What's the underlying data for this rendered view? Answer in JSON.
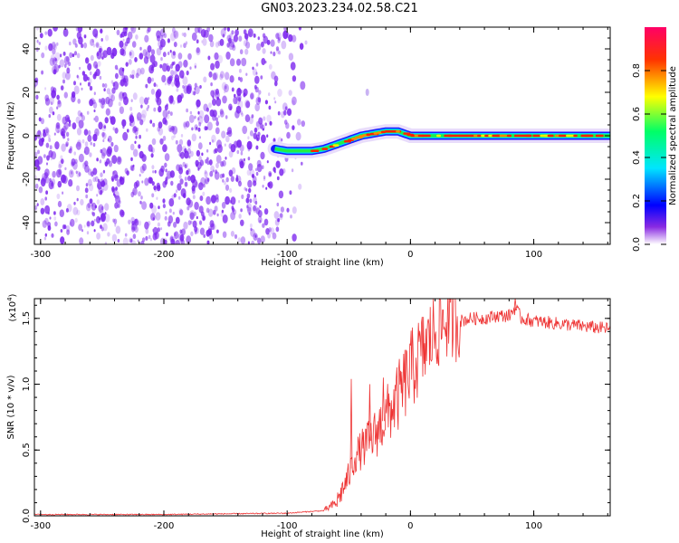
{
  "title": "GN03.2023.234.02.58.C21",
  "colors": {
    "snr_line": "#ee3333",
    "frame": "#000000",
    "noise": "#7a22ee",
    "colormap_stops": [
      "#8a2be2",
      "#0000ff",
      "#00e5ff",
      "#00ff66",
      "#ffff00",
      "#ff3300",
      "#ff0066"
    ]
  },
  "chart_data": [
    {
      "type": "heatmap",
      "name": "spectrogram",
      "xlabel": "Height of straight line (km)",
      "ylabel": "Frequency (Hz)",
      "xlim": [
        -305,
        162
      ],
      "ylim": [
        -50,
        50
      ],
      "xticks": [
        -300,
        -200,
        -100,
        0,
        100
      ],
      "xtick_labels": [
        "-300",
        "-200",
        "-100",
        "0",
        "100"
      ],
      "yticks": [
        -40,
        -20,
        0,
        20,
        40
      ],
      "ytick_labels": [
        "-40",
        "-20",
        "0",
        "20",
        "40"
      ],
      "noise_region_x": [
        -305,
        -92
      ],
      "track": {
        "x": [
          -110,
          -100,
          -90,
          -80,
          -70,
          -60,
          -50,
          -40,
          -30,
          -20,
          -10,
          0,
          20,
          40,
          60,
          80,
          100,
          130,
          162
        ],
        "y": [
          -6,
          -7,
          -7,
          -7,
          -6,
          -4,
          -2,
          0,
          1,
          2,
          2,
          0,
          0,
          0,
          0,
          0,
          0,
          0,
          0
        ]
      },
      "colorbar": {
        "label": "Normalized spectral amplitude",
        "range": [
          0,
          1
        ],
        "ticks": [
          0.0,
          0.2,
          0.4,
          0.6,
          0.8
        ],
        "tick_labels": [
          "0.0",
          "0.2",
          "0.4",
          "0.6",
          "0.8"
        ]
      }
    },
    {
      "type": "line",
      "name": "snr",
      "xlabel": "Height of straight line (km)",
      "ylabel": "SNR (10 * v/v)",
      "multiplier_label": "(x10",
      "multiplier_exp": "4",
      "xlim": [
        -305,
        162
      ],
      "ylim": [
        0,
        1.65
      ],
      "xticks": [
        -300,
        -200,
        -100,
        0,
        100
      ],
      "xtick_labels": [
        "-300",
        "-200",
        "-100",
        "0",
        "100"
      ],
      "yticks": [
        0.0,
        0.5,
        1.0,
        1.5
      ],
      "ytick_labels": [
        "0.0",
        "0.5",
        "1.0",
        "1.5"
      ],
      "x": [
        -305,
        -200,
        -100,
        -70,
        -60,
        -50,
        -45,
        -40,
        -30,
        -20,
        -10,
        0,
        10,
        20,
        30,
        40,
        50,
        60,
        70,
        80,
        85,
        90,
        100,
        120,
        140,
        162
      ],
      "y": [
        0.01,
        0.01,
        0.02,
        0.04,
        0.1,
        0.3,
        0.45,
        0.5,
        0.6,
        0.75,
        0.9,
        1.1,
        1.25,
        1.4,
        1.5,
        1.48,
        1.5,
        1.5,
        1.52,
        1.52,
        1.58,
        1.5,
        1.48,
        1.46,
        1.44,
        1.42
      ],
      "spikes": [
        {
          "x": -48,
          "y": 1.04
        },
        {
          "x": -33,
          "y": 1.0
        },
        {
          "x": -22,
          "y": 1.05
        },
        {
          "x": 85,
          "y": 1.65
        }
      ]
    }
  ]
}
